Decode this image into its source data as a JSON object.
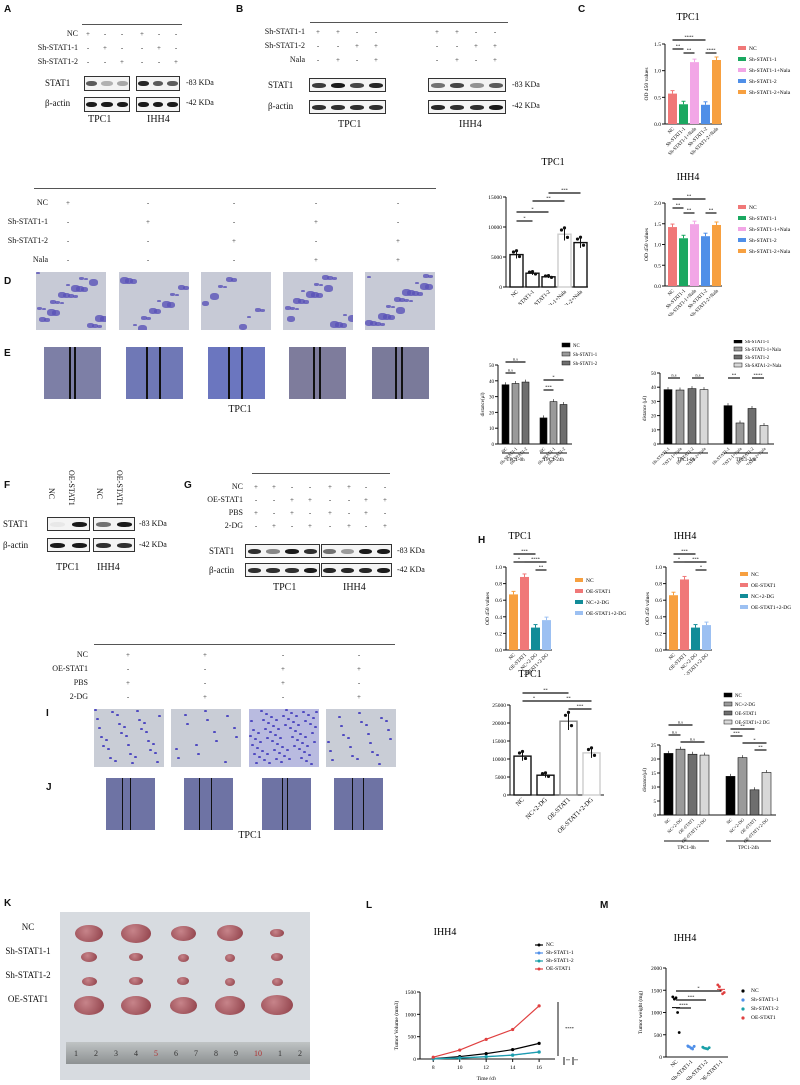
{
  "panels": {
    "A": {
      "label": "A",
      "rows": [
        {
          "name": "NC",
          "signs": [
            "+",
            "-",
            "-",
            "+",
            "-",
            "-"
          ]
        },
        {
          "name": "Sh-STAT1-1",
          "signs": [
            "-",
            "+",
            "-",
            "-",
            "+",
            "-"
          ]
        },
        {
          "name": "Sh-STAT1-2",
          "signs": [
            "-",
            "-",
            "+",
            "-",
            "-",
            "+"
          ]
        }
      ],
      "blots": [
        {
          "name": "STAT1",
          "kda": "-83 KDa"
        },
        {
          "name": "β-actin",
          "kda": "-42 KDa"
        }
      ],
      "cells": [
        "TPC1",
        "IHH4"
      ]
    },
    "B": {
      "label": "B",
      "rows": [
        {
          "name": "Sh-STAT1-1",
          "signs": [
            "+",
            "+",
            "-",
            "-",
            "+",
            "+",
            "-",
            "-"
          ]
        },
        {
          "name": "Sh-STAT1-2",
          "signs": [
            "-",
            "-",
            "+",
            "+",
            "-",
            "-",
            "+",
            "+"
          ]
        },
        {
          "name": "Nala",
          "signs": [
            "-",
            "+",
            "-",
            "+",
            "-",
            "+",
            "-",
            "+"
          ]
        }
      ],
      "blots": [
        {
          "name": "STAT1",
          "kda": "-83 KDa"
        },
        {
          "name": "β-actin",
          "kda": "-42 KDa"
        }
      ],
      "cells": [
        "TPC1",
        "IHH4"
      ]
    },
    "C": {
      "label": "C"
    },
    "D": {
      "label": "D",
      "rows": [
        {
          "name": "NC",
          "signs": [
            "+",
            "-",
            "-",
            "-",
            "-"
          ]
        },
        {
          "name": "Sh-STAT1-1",
          "signs": [
            "-",
            "+",
            "-",
            "+",
            "-"
          ]
        },
        {
          "name": "Sh-STAT1-2",
          "signs": [
            "-",
            "-",
            "+",
            "-",
            "+"
          ]
        },
        {
          "name": "Nala",
          "signs": [
            "-",
            "-",
            "-",
            "+",
            "+"
          ]
        }
      ]
    },
    "E": {
      "label": "E",
      "cell": "TPC1"
    },
    "F": {
      "label": "F",
      "lanes": [
        "NC",
        "OE-STAT1",
        "NC",
        "OE-STAT1"
      ],
      "blots": [
        {
          "name": "STAT1",
          "kda": "-83 KDa"
        },
        {
          "name": "β-actin",
          "kda": "-42 KDa"
        }
      ],
      "cells": [
        "TPC1",
        "IHH4"
      ]
    },
    "G": {
      "label": "G",
      "rows": [
        {
          "name": "NC",
          "signs": [
            "+",
            "+",
            "-",
            "-",
            "+",
            "+",
            "-",
            "-"
          ]
        },
        {
          "name": "OE-STAT1",
          "signs": [
            "-",
            "-",
            "+",
            "+",
            "-",
            "-",
            "+",
            "+"
          ]
        },
        {
          "name": "PBS",
          "signs": [
            "+",
            "-",
            "+",
            "-",
            "+",
            "-",
            "+",
            "-"
          ]
        },
        {
          "name": "2-DG",
          "signs": [
            "-",
            "+",
            "-",
            "+",
            "-",
            "+",
            "-",
            "+"
          ]
        }
      ],
      "blots": [
        {
          "name": "STAT1",
          "kda": "-83 KDa"
        },
        {
          "name": "β-actin",
          "kda": "-42 KDa"
        }
      ],
      "cells": [
        "TPC1",
        "IHH4"
      ]
    },
    "H": {
      "label": "H"
    },
    "I": {
      "label": "I",
      "rows": [
        {
          "name": "NC",
          "signs": [
            "+",
            "+",
            "-",
            "-"
          ]
        },
        {
          "name": "OE-STAT1",
          "signs": [
            "-",
            "-",
            "+",
            "+"
          ]
        },
        {
          "name": "PBS",
          "signs": [
            "+",
            "-",
            "+",
            "-"
          ]
        },
        {
          "name": "2-DG",
          "signs": [
            "-",
            "+",
            "-",
            "+"
          ]
        }
      ]
    },
    "J": {
      "label": "J",
      "cell": "TPC1"
    },
    "K": {
      "label": "K",
      "rows": [
        "NC",
        "Sh-STAT1-1",
        "Sh-STAT1-2",
        "OE-STAT1"
      ],
      "ruler_ticks": [
        "1",
        "2",
        "3",
        "4",
        "5",
        "6",
        "7",
        "8",
        "9",
        "10",
        "1",
        "2"
      ]
    },
    "L": {
      "label": "L"
    },
    "M": {
      "label": "M"
    }
  },
  "chart_data": [
    {
      "id": "C-TPC1",
      "type": "bar",
      "title": "TPC1",
      "ylabel": "OD 450 values",
      "ylim": [
        0,
        1.5
      ],
      "yticks": [
        "0.0",
        "0.5",
        "1.0",
        "1.5"
      ],
      "categories": [
        "NC",
        "Sh-STAT1-1",
        "Sh-STAT1-1+Nala",
        "Sh-STAT1-2",
        "Sh-STAT1-2+Nala"
      ],
      "values": [
        0.57,
        0.37,
        1.16,
        0.36,
        1.2
      ],
      "colors": [
        "#f07878",
        "#1aa860",
        "#f2a6e6",
        "#4f8fe8",
        "#f7a040"
      ],
      "legend": [
        "NC",
        "Sh-STAT1-1",
        "Sh-STAT1-1+Nala",
        "Sh-STAT1-2",
        "Sh-STAT1-2+Nala"
      ],
      "significance": [
        "**",
        "**",
        "****",
        "****"
      ]
    },
    {
      "id": "C-IHH4",
      "type": "bar",
      "title": "IHH4",
      "ylabel": "OD 450 values",
      "ylim": [
        0,
        2.0
      ],
      "yticks": [
        "0.0",
        "0.5",
        "1.0",
        "1.5",
        "2.0"
      ],
      "categories": [
        "NC",
        "Sh-STAT1-1",
        "Sh-STAT1-1+Nala",
        "Sh-STAT1-2",
        "Sh-STAT1-2+Nala"
      ],
      "values": [
        1.42,
        1.15,
        1.49,
        1.2,
        1.47
      ],
      "colors": [
        "#f07878",
        "#1aa860",
        "#f2a6e6",
        "#4f8fe8",
        "#f7a040"
      ],
      "legend": [
        "NC",
        "Sh-STAT1-1",
        "Sh-STAT1-1+Nala",
        "Sh-STAT1-2",
        "Sh-STAT1-2+Nala"
      ],
      "significance": [
        "**",
        "**",
        "**",
        "**"
      ]
    },
    {
      "id": "D-TPC1",
      "type": "bar",
      "title": "TPC1",
      "ylim": [
        0,
        15000
      ],
      "yticks": [
        "0",
        "5000",
        "10000",
        "15000"
      ],
      "categories": [
        "NC",
        "Sh-STAT1-1",
        "Sh-STAT1-2",
        "Sh-STAT1-1+Nala",
        "Sh-STAT1-2+Nala"
      ],
      "values": [
        5400,
        2300,
        1700,
        8800,
        7400
      ],
      "significance": [
        "*",
        "*",
        "**",
        "***"
      ]
    },
    {
      "id": "E-TPC1-sh",
      "type": "bar",
      "ylabel": "distance(μl)",
      "ylim": [
        0,
        50
      ],
      "yticks": [
        "0",
        "10",
        "20",
        "30",
        "40",
        "50"
      ],
      "groups": [
        "TPC1-0h",
        "TPC1-24h"
      ],
      "categories": [
        "NC",
        "Sh-STAT1-1",
        "Sh-STAT1-2"
      ],
      "series": [
        {
          "name": "NC",
          "values": [
            37.5,
            16.5
          ],
          "color": "#000000"
        },
        {
          "name": "Sh-STAT1-1",
          "values": [
            38.3,
            26.8
          ],
          "color": "#9a9a9a"
        },
        {
          "name": "Sh-STAT1-2",
          "values": [
            39.2,
            25
          ],
          "color": "#6e6e6e"
        }
      ],
      "significance": [
        "n.s",
        "n.s",
        "*",
        "***"
      ]
    },
    {
      "id": "E-TPC1-nala",
      "type": "bar",
      "ylabel": "distance (μl)",
      "ylim": [
        0,
        50
      ],
      "yticks": [
        "0",
        "10",
        "20",
        "30",
        "40",
        "50"
      ],
      "groups": [
        "TPC1-0h",
        "TPC1-24h"
      ],
      "categories": [
        "Sh-STAT1-1",
        "Sh-STAT1-1+Nala",
        "Sh-STAT1-2",
        "Sh-STAT1-2+Nala"
      ],
      "series": [
        {
          "name": "Sh-STAT1-1",
          "values": [
            38.3,
            27
          ],
          "color": "#000000"
        },
        {
          "name": "Sh-STAT1-1+Nala",
          "values": [
            38,
            14.8
          ],
          "color": "#9a9a9a"
        },
        {
          "name": "Sh-STAT1-2",
          "values": [
            39,
            25
          ],
          "color": "#6e6e6e"
        },
        {
          "name": "Sh-SATA1-2+Nala",
          "values": [
            38.3,
            13
          ],
          "color": "#d8d8d8"
        }
      ],
      "significance": [
        "n.s",
        "n.s",
        "**",
        "****"
      ]
    },
    {
      "id": "H-TPC1",
      "type": "bar",
      "title": "TPC1",
      "ylabel": "OD 450 values",
      "ylim": [
        0,
        1.0
      ],
      "yticks": [
        "0.0",
        "0.2",
        "0.4",
        "0.6",
        "0.8",
        "1.0"
      ],
      "categories": [
        "NC",
        "OE-STAT1",
        "NC+2-DG",
        "OE-STAT1+2-DG"
      ],
      "values": [
        0.67,
        0.88,
        0.27,
        0.36
      ],
      "colors": [
        "#f7a040",
        "#f07878",
        "#128c98",
        "#9cc0f2"
      ],
      "legend": [
        "NC",
        "OE-STAT1",
        "NC+2-DG",
        "OE-STAT1+2-DG"
      ],
      "significance": [
        "***",
        "*",
        "****",
        "**"
      ]
    },
    {
      "id": "H-IHH4",
      "type": "bar",
      "title": "IHH4",
      "ylabel": "OD 450 values",
      "ylim": [
        0,
        1.0
      ],
      "yticks": [
        "0.0",
        "0.2",
        "0.4",
        "0.6",
        "0.8",
        "1.0"
      ],
      "categories": [
        "NC",
        "OE-STAT1",
        "NC+2-DG",
        "OE-STAT1+2-DG"
      ],
      "values": [
        0.66,
        0.85,
        0.27,
        0.3
      ],
      "colors": [
        "#f7a040",
        "#f07878",
        "#128c98",
        "#9cc0f2"
      ],
      "legend": [
        "NC",
        "OE-STAT1",
        "NC+2-DG",
        "OE-STAT1+2-DG"
      ],
      "significance": [
        "***",
        "*",
        "***",
        "*"
      ]
    },
    {
      "id": "I-TPC1",
      "type": "bar",
      "title": "TPC1",
      "ylim": [
        0,
        25000
      ],
      "yticks": [
        "0",
        "5000",
        "10000",
        "15000",
        "20000",
        "25000"
      ],
      "categories": [
        "NC",
        "NC+2-DG",
        "OE-STAT1",
        "OE-STAT1+2-DG"
      ],
      "values": [
        10800,
        5500,
        20500,
        11700
      ],
      "significance": [
        "**",
        "*",
        "**",
        "***"
      ]
    },
    {
      "id": "J-TPC1",
      "type": "bar",
      "ylabel": "distance(μl)",
      "ylim": [
        0,
        25
      ],
      "yticks": [
        "0",
        "5",
        "10",
        "15",
        "20",
        "25"
      ],
      "groups": [
        "TPC1-0h",
        "TPC1-24h"
      ],
      "categories": [
        "NC",
        "NC+2-DG",
        "OE-STAT1",
        "OE-STAT1+2-DG"
      ],
      "series": [
        {
          "name": "NC",
          "values": [
            22,
            13.8
          ],
          "color": "#000000"
        },
        {
          "name": "NC+2-DG",
          "values": [
            23.5,
            20.5
          ],
          "color": "#9a9a9a"
        },
        {
          "name": "OE-STAT1",
          "values": [
            21.7,
            9
          ],
          "color": "#6e6e6e"
        },
        {
          "name": "OE-STAT1+2 DG",
          "values": [
            21.4,
            15.2
          ],
          "color": "#d8d8d8"
        }
      ],
      "significance": [
        "n.s",
        "n.s",
        "n.s",
        "**",
        "***",
        "*",
        "**"
      ]
    },
    {
      "id": "L-IHH4",
      "type": "line",
      "title": "IHH4",
      "xlabel": "Time (d)",
      "ylabel": "Tumor Volume (mm3)",
      "x": [
        8,
        10,
        12,
        14,
        16
      ],
      "ylim": [
        0,
        1500
      ],
      "yticks": [
        "0",
        "500",
        "1000",
        "1500"
      ],
      "series": [
        {
          "name": "NC",
          "values": [
            10,
            55,
            120,
            210,
            350
          ],
          "color": "#000000"
        },
        {
          "name": "Sh-STAT1-1",
          "values": [
            5,
            25,
            55,
            90,
            160
          ],
          "color": "#4f8fe8"
        },
        {
          "name": "Sh-STAT1-2",
          "values": [
            5,
            22,
            50,
            85,
            155
          ],
          "color": "#1aa0a8"
        },
        {
          "name": "OE-STAT1",
          "values": [
            40,
            200,
            440,
            660,
            1190
          ],
          "color": "#e04040"
        }
      ],
      "significance": [
        "****",
        "**",
        "**"
      ]
    },
    {
      "id": "M-IHH4",
      "type": "scatter",
      "title": "IHH4",
      "ylabel": "Tumor weight (mg)",
      "ylim": [
        0,
        2000
      ],
      "yticks": [
        "0",
        "500",
        "1000",
        "1500",
        "2000"
      ],
      "categories": [
        "NC",
        "Sh-STAT1-1",
        "Sh-STAT1-2",
        "OE-STAT1-1"
      ],
      "series": [
        {
          "name": "NC",
          "mean": 1110,
          "points": [
            1350,
            1300,
            1330,
            1000,
            550
          ],
          "color": "#000000"
        },
        {
          "name": "Sh-STAT1-1",
          "mean": 220,
          "points": [
            250,
            230,
            200,
            180,
            240
          ],
          "color": "#4f8fe8"
        },
        {
          "name": "Sh-STAT1-2",
          "mean": 200,
          "points": [
            220,
            200,
            190,
            180,
            210
          ],
          "color": "#1aa0a8"
        },
        {
          "name": "OE-STAT1",
          "mean": 1520,
          "points": [
            1620,
            1580,
            1500,
            1420,
            1450
          ],
          "color": "#e04040"
        }
      ],
      "significance": [
        "****",
        "***",
        "*"
      ]
    }
  ]
}
